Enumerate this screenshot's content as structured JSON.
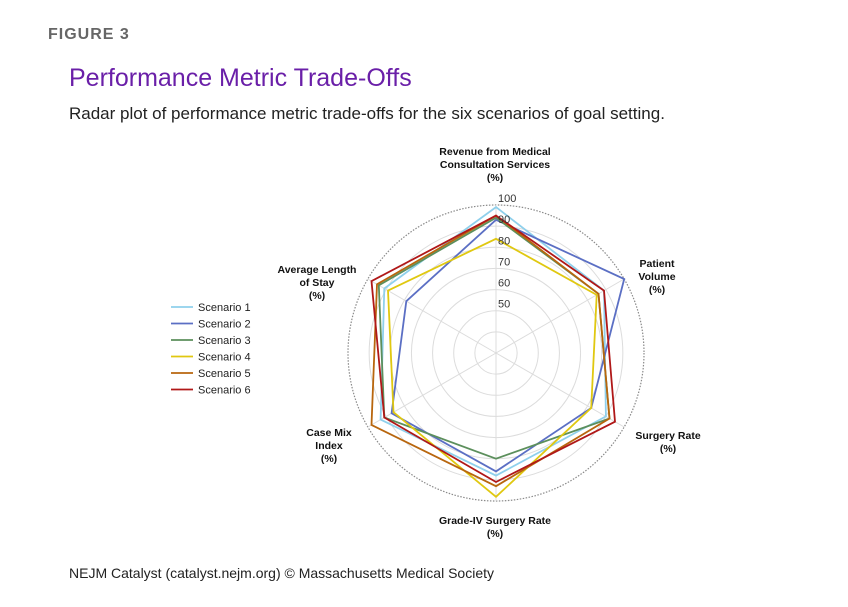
{
  "figure_label": "FIGURE 3",
  "title": "Performance Metric Trade-Offs",
  "subtitle": "Radar plot of performance metric trade-offs for the six scenarios of goal setting.",
  "footer": "NEJM Catalyst (catalyst.nejm.org) © Massachusetts Medical Society",
  "chart_data": {
    "type": "radar",
    "axes": [
      [
        "Revenue from Medical",
        "Consultation Services",
        "(%)"
      ],
      [
        "Patient",
        "Volume",
        "(%)"
      ],
      [
        "Surgery Rate",
        "(%)"
      ],
      [
        "Grade-IV Surgery Rate",
        "(%)"
      ],
      [
        "Case Mix",
        "Index",
        "(%)"
      ],
      [
        "Average Length",
        "of Stay",
        "(%)"
      ]
    ],
    "r_ticks": [
      50,
      60,
      70,
      80,
      90,
      100
    ],
    "r_tick_labels": [
      "50",
      "60",
      "70",
      "80",
      "90",
      "100"
    ],
    "r_range": [
      30,
      100
    ],
    "grid": true,
    "legend_position": "left",
    "series": [
      {
        "name": "Scenario 1",
        "color": "#8fd0ec",
        "values": [
          99,
          89,
          90,
          88,
          93,
          91
        ]
      },
      {
        "name": "Scenario 2",
        "color": "#5b6fc4",
        "values": [
          93,
          100,
          82,
          86,
          87,
          79
        ]
      },
      {
        "name": "Scenario 3",
        "color": "#5c8f5c",
        "values": [
          94,
          86,
          92,
          80,
          91,
          94
        ]
      },
      {
        "name": "Scenario 4",
        "color": "#e0c810",
        "values": [
          84,
          85,
          82,
          98,
          86,
          89
        ]
      },
      {
        "name": "Scenario 5",
        "color": "#b8660e",
        "values": [
          95,
          86,
          92,
          93,
          98,
          95
        ]
      },
      {
        "name": "Scenario 6",
        "color": "#b01818",
        "values": [
          95,
          89,
          95,
          91,
          91,
          98
        ]
      }
    ]
  }
}
